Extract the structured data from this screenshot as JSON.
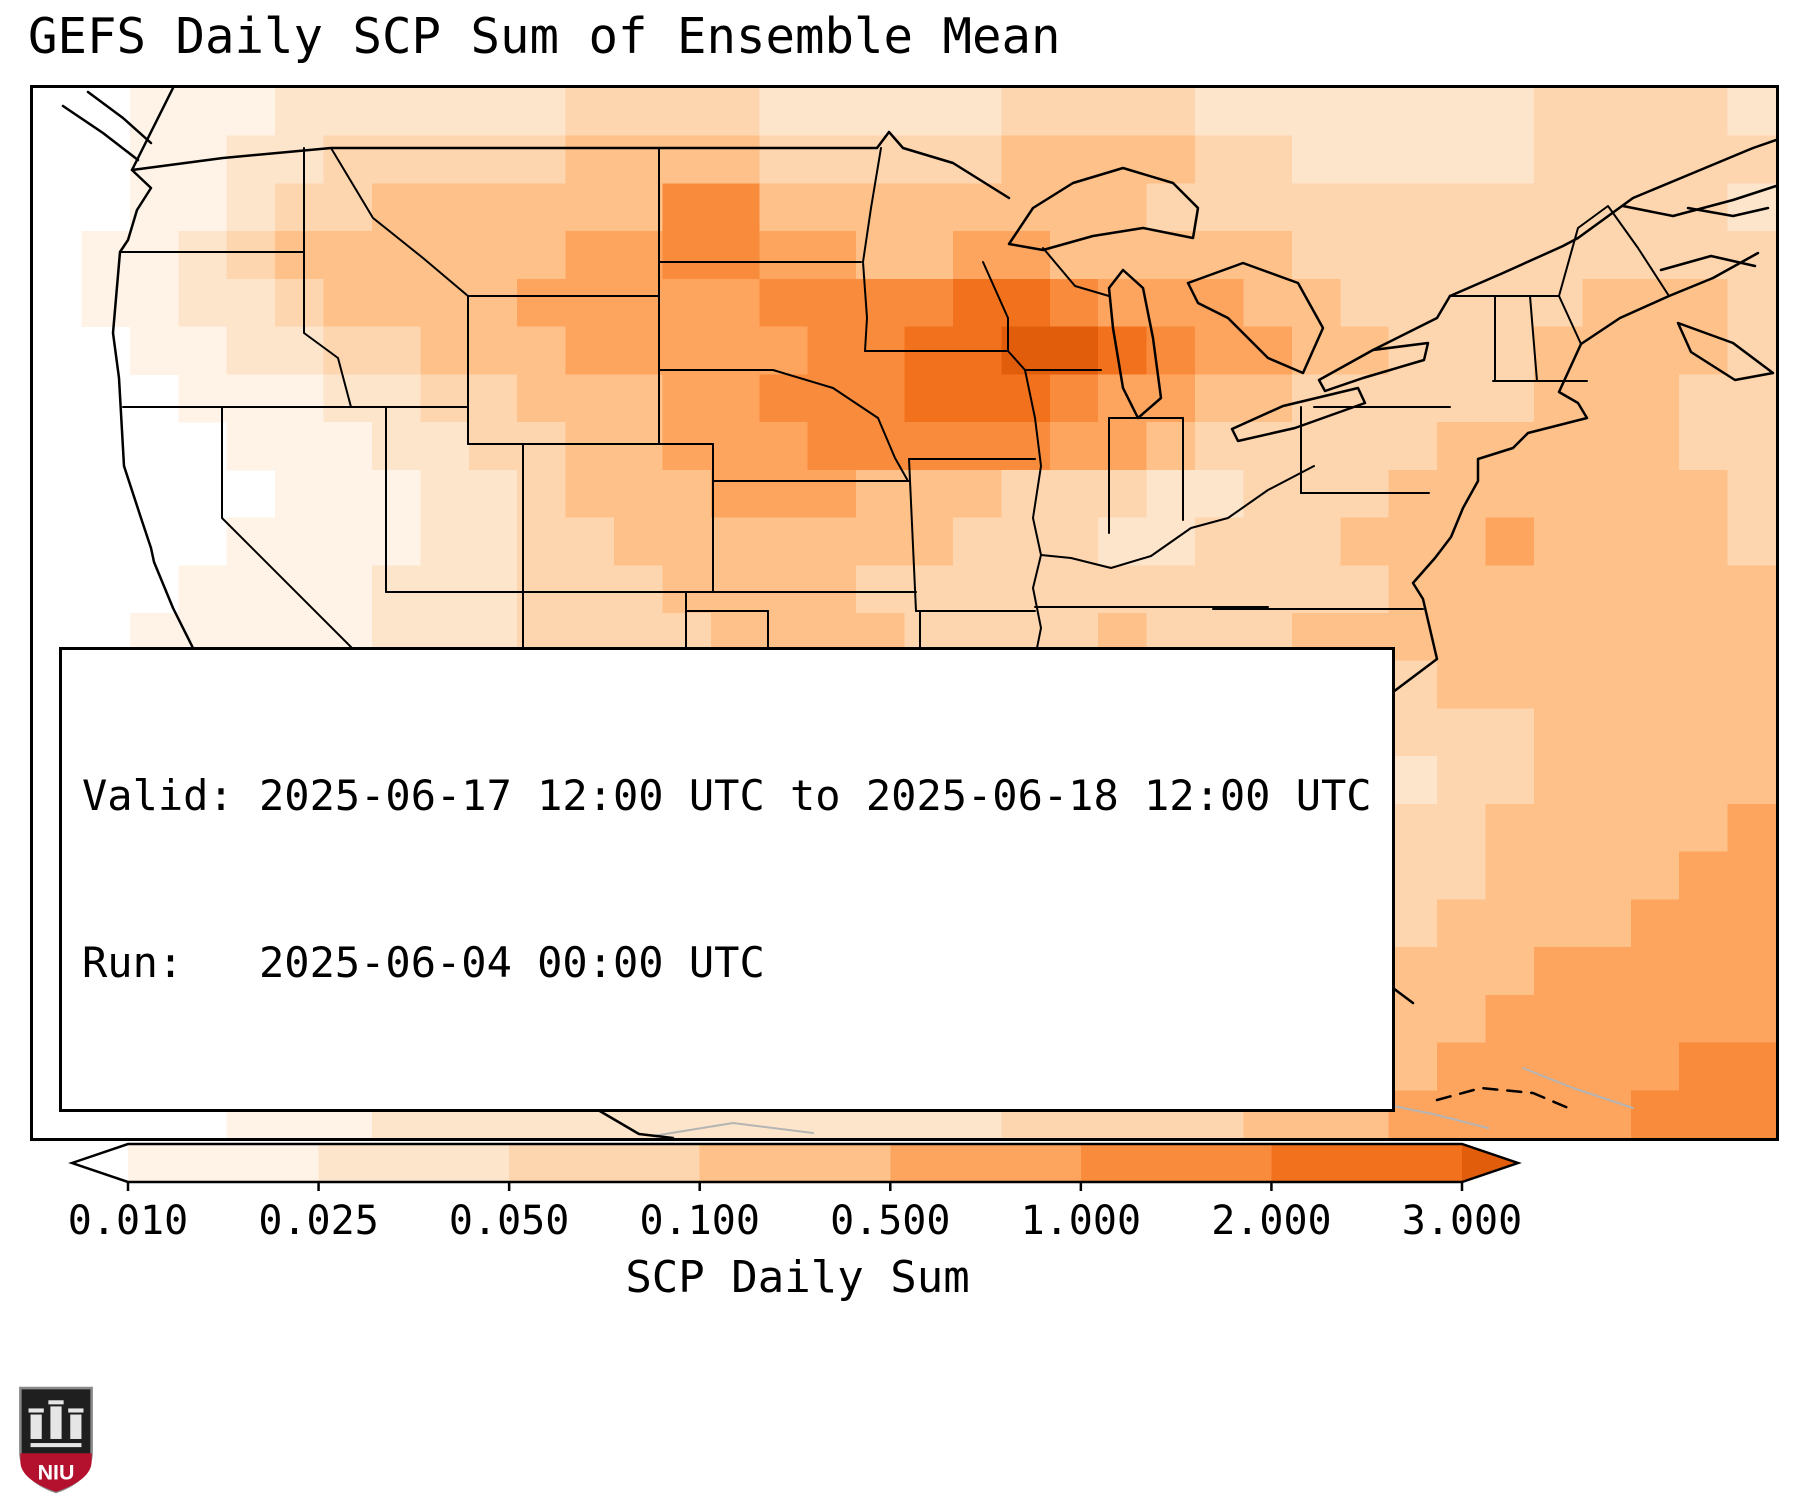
{
  "title": "GEFS Daily SCP Sum of Ensemble Mean",
  "annotation": {
    "line1": "Valid: 2025-06-17 12:00 UTC to 2025-06-18 12:00 UTC",
    "line2": "Run:   2025-06-04 00:00 UTC"
  },
  "colorbar": {
    "label": "SCP Daily Sum",
    "ticks": [
      "0.010",
      "0.025",
      "0.050",
      "0.100",
      "0.500",
      "1.000",
      "2.000",
      "3.000"
    ],
    "segment_colors": [
      "#fef3e6",
      "#fde5cc",
      "#fdd5ae",
      "#fdc189",
      "#fda55f",
      "#f98c3c",
      "#f2711d"
    ],
    "under_color": "#ffffff",
    "over_color": "#e25d0b"
  },
  "logo": {
    "text": "NIU",
    "red": "#b3112e",
    "dark": "#1f1f1f"
  },
  "chart_data": {
    "type": "heatmap",
    "title": "GEFS Daily SCP Sum of Ensemble Mean",
    "colorbar_label": "SCP Daily Sum",
    "colormap": "Oranges",
    "colorbar_boundaries": [
      0.01,
      0.025,
      0.05,
      0.1,
      0.5,
      1.0,
      2.0,
      3.0
    ],
    "colorbar_extend": "both",
    "valid_period": "2025-06-17 12:00 UTC to 2025-06-18 12:00 UTC",
    "run_time": "2025-06-04 00:00 UTC",
    "palette": [
      "#ffffff",
      "#fef3e6",
      "#fde5cc",
      "#fdd5ae",
      "#fdc189",
      "#fda55f",
      "#f98c3c",
      "#f2711d",
      "#e25d0b"
    ],
    "grid_cols": 36,
    "grid_rows": 22,
    "intensity_grid": [
      "001112222223333222223333222222233332",
      "001122333334444333334444332222233333",
      "001123344444466444444443333333333332",
      "011234444445566554455444443333333333",
      "011223444455555666677655544333334443",
      "001122334445555566778876554433344443",
      "000111223344455666777655443333344433",
      "000011122334455566666554333334444433",
      "000001112234445554443332233344444443",
      "000011112233444444433322333444544443",
      "000111122233344443333333333344444444",
      "001111122233334444333343334444444444",
      "001111112223334444444444333334444444",
      "011112222233333444444443322233344444",
      "011223322223333334444433221123344444",
      "011233233322333333444333210133444445",
      "001233332222233333333333321233444455",
      "001223222222223333333333332334444555",
      "001122222222222233333333333344455555",
      "000112222222222223333333333444555555",
      "000111222222222222233333334445555566",
      "000011122222222222223333344455555666"
    ],
    "map_paths": {
      "coast": [
        "M 140,0 L 120,40 L 99,82 L 118,100 L 104,122 L 95,152 L 87,164 L 80,245 L 86,290 L 91,378 L 108,430 L 118,460 L 121,474 L 140,520 L 160,560 L 176,600 L 215,632 L 238,640 L 262,660 L 266,663 L 337,670 L 560,696 L 610,740 L 653,793 L 700,830 L 749,856 L 803,915 L 806,845 L 877,789 L 902,774 L 940,777 L 980,787 L 1010,777 L 1030,796 L 1048,802 L 1042,778 L 1060,762 L 1063,748 L 1090,756 L 1145,774 L 1186,800 L 1213,841 L 1232,907 L 1257,941 L 1279,918 L 1265,819 L 1243,752 L 1254,689 L 1284,659 L 1336,622 L 1404,571 L 1390,511 L 1380,495 L 1402,470 L 1418,449 L 1430,420 L 1445,393 L 1445,371 L 1480,360 L 1495,345 L 1554,330 L 1545,315 L 1526,304 L 1548,256 L 1587,230 L 1636,208 L 1680,190 L 1725,165",
        "M 266,663 L 284,705 L 298,748 L 315,800 L 340,858 L 365,905 L 380,938 L 371,948 L 350,912 L 328,868 L 310,820 L 296,772 L 280,722 L 258,676",
        "M 337,670 L 362,722 L 392,790 L 422,850 L 458,912 L 500,965 L 548,1012 L 606,1046 L 640,1050",
        "M 99,82 L 190,70 L 298,60 L 626,60 L 735,60 L 844,60 L 856,44 L 870,60 L 920,75 L 976,110",
        "M 1340,262 L 1404,230 L 1417,208",
        "M 1417,208 L 1470,185 L 1530,158 L 1545,150",
        "M 30,18 L 70,45 L 105,72",
        "M 55,4 L 90,30 L 118,55",
        "M 1545,150 L 1600,110 L 1660,85 L 1720,60 L 1743,52",
        "M 1590,118 L 1640,128 L 1700,112 L 1743,98",
        "M 1655,120 L 1700,128 L 1735,120",
        "M 1628,182 L 1678,168 L 1722,178",
        "M 1645,235 L 1700,255 L 1740,285 L 1702,292 L 1658,264 Z",
        "M 1320,930 L 1345,945",
        "M 1360,900 L 1380,915"
      ],
      "lakes": [
        "M 976,156 L 1000,120 L 1040,95 L 1090,80 L 1140,95 L 1165,120 L 1160,150 L 1110,140 L 1060,148 L 1010,162 Z",
        "M 1090,182 L 1110,200 L 1120,250 L 1128,310 L 1105,330 L 1090,300 L 1080,240 L 1076,200 Z",
        "M 1155,195 L 1210,175 L 1265,195 L 1290,240 L 1270,285 L 1235,270 L 1195,230 L 1165,215 Z",
        "M 1199,341 L 1250,318 L 1325,300 L 1332,315 L 1262,340 L 1205,353 Z",
        "M 1286,292 L 1340,262 L 1395,255 L 1391,272 L 1330,290 L 1292,303 Z"
      ],
      "states": [
        "M 87,164 L 271,164",
        "M 271,60 L 271,245 L 305,270 L 318,319",
        "M 90,319 L 435,319",
        "M 189,319 L 189,430 L 337,578 L 330,622 L 337,663",
        "M 298,60 L 340,130 L 390,170 L 435,208",
        "M 353,319 L 353,504",
        "M 353,504 L 680,504",
        "M 490,356 L 490,700",
        "M 435,208 L 626,208",
        "M 435,208 L 435,356",
        "M 435,356 L 680,356",
        "M 626,60 L 626,356",
        "M 680,356 L 680,504",
        "M 626,174 L 828,174",
        "M 848,60 L 838,120 L 830,174",
        "M 830,174 L 834,230 L 832,263",
        "M 832,263 L 975,263",
        "M 626,282 L 740,282 L 800,300 L 845,330 L 862,370 L 875,393",
        "M 680,393 L 876,393",
        "M 876,371 L 1002,371",
        "M 876,371 L 883,523",
        "M 680,504 L 883,504",
        "M 883,523 L 1002,523",
        "M 653,504 L 653,689",
        "M 555,689 L 653,689",
        "M 653,523 L 735,523",
        "M 735,523 L 735,597",
        "M 735,597 L 775,612 L 815,604 L 850,618 L 887,623",
        "M 887,523 L 887,652",
        "M 887,652 L 1005,652",
        "M 887,652 L 904,690 L 902,774",
        "M 950,174 L 975,230 L 975,263 L 992,282 L 1002,330 L 1008,378 L 1000,430 L 1008,467 L 1000,500 L 1008,540 L 1000,580 L 1005,620 L 1000,660 L 1010,700 L 1004,740 L 1014,770 L 1030,796",
        "M 992,282 L 1068,282",
        "M 1076,330 L 1076,445",
        "M 1150,330 L 1150,432",
        "M 1076,330 L 1150,330",
        "M 1281,378 L 1235,402 L 1195,430 L 1158,440 L 1118,468 L 1078,480 L 1038,470 L 1008,467",
        "M 1002,519 L 1235,519",
        "M 1005,578 L 1164,578",
        "M 1060,578 L 1063,745",
        "M 1142,578 L 1142,758",
        "M 1150,737 L 1243,748",
        "M 1180,521 L 1390,521",
        "M 1195,578 L 1290,645",
        "M 1195,578 L 1232,642 L 1254,689",
        "M 1268,319 L 1268,405",
        "M 1268,405 L 1396,405",
        "M 1281,319 L 1417,319",
        "M 1417,208 L 1526,208",
        "M 1462,208 L 1462,293",
        "M 1460,293 L 1554,293",
        "M 1497,208 L 1504,293",
        "M 1526,208 L 1548,256",
        "M 1526,208 L 1545,140 L 1575,118 L 1605,160 L 1636,208",
        "M 1010,160 L 1042,198 L 1076,208"
      ],
      "gray": [
        "M 420,850 L 470,830 L 520,850 L 560,830",
        "M 560,700 L 585,760 L 575,830 L 600,890",
        "M 620,1048 L 700,1035 L 780,1045",
        "M 1190,1020 L 1260,1008 L 1330,1012 L 1400,1026 L 1455,1040",
        "M 1490,980 L 1540,1000 L 1600,1020"
      ],
      "dashed": [
        "M 1404,1012 L 1448,1000 L 1500,1005 L 1540,1022"
      ]
    }
  }
}
